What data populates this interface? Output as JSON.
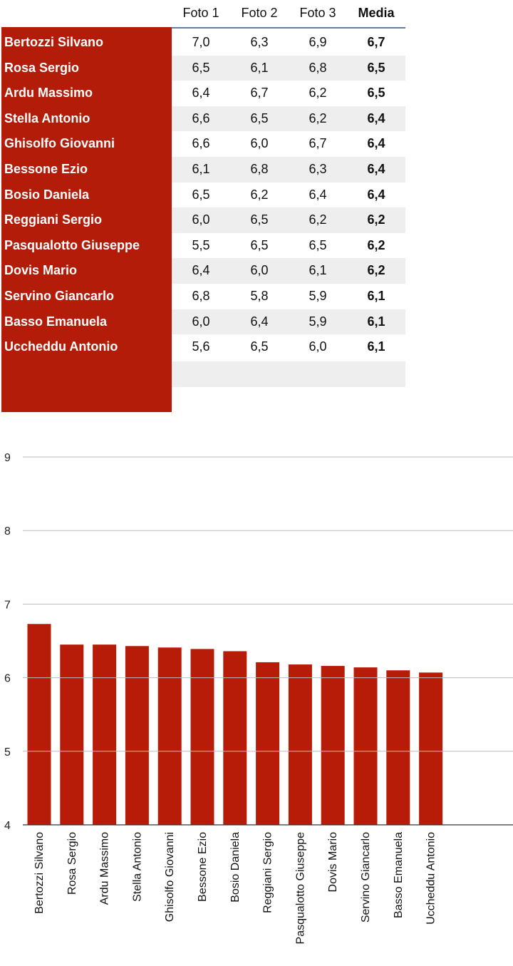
{
  "table": {
    "headers": [
      "Foto 1",
      "Foto 2",
      "Foto 3",
      "Media"
    ],
    "rows": [
      {
        "name": "Bertozzi Silvano",
        "f1": "7,0",
        "f2": "6,3",
        "f3": "6,9",
        "media": "6,7"
      },
      {
        "name": "Rosa Sergio",
        "f1": "6,5",
        "f2": "6,1",
        "f3": "6,8",
        "media": "6,5"
      },
      {
        "name": "Ardu Massimo",
        "f1": "6,4",
        "f2": "6,7",
        "f3": "6,2",
        "media": "6,5"
      },
      {
        "name": "Stella Antonio",
        "f1": "6,6",
        "f2": "6,5",
        "f3": "6,2",
        "media": "6,4"
      },
      {
        "name": "Ghisolfo Giovanni",
        "f1": "6,6",
        "f2": "6,0",
        "f3": "6,7",
        "media": "6,4"
      },
      {
        "name": "Bessone Ezio",
        "f1": "6,1",
        "f2": "6,8",
        "f3": "6,3",
        "media": "6,4"
      },
      {
        "name": "Bosio Daniela",
        "f1": "6,5",
        "f2": "6,2",
        "f3": "6,4",
        "media": "6,4"
      },
      {
        "name": "Reggiani Sergio",
        "f1": "6,0",
        "f2": "6,5",
        "f3": "6,2",
        "media": "6,2"
      },
      {
        "name": "Pasqualotto Giuseppe",
        "f1": "5,5",
        "f2": "6,5",
        "f3": "6,5",
        "media": "6,2"
      },
      {
        "name": "Dovis Mario",
        "f1": "6,4",
        "f2": "6,0",
        "f3": "6,1",
        "media": "6,2"
      },
      {
        "name": "Servino Giancarlo",
        "f1": "6,8",
        "f2": "5,8",
        "f3": "5,9",
        "media": "6,1"
      },
      {
        "name": "Basso Emanuela",
        "f1": "6,0",
        "f2": "6,4",
        "f3": "5,9",
        "media": "6,1"
      },
      {
        "name": "Uccheddu Antonio",
        "f1": "5,6",
        "f2": "6,5",
        "f3": "6,0",
        "media": "6,1"
      }
    ]
  },
  "chart_data": {
    "type": "bar",
    "categories": [
      "Bertozzi Silvano",
      "Rosa Sergio",
      "Ardu Massimo",
      "Stella Antonio",
      "Ghisolfo Giovanni",
      "Bessone Ezio",
      "Bosio Daniela",
      "Reggiani Sergio",
      "Pasqualotto Giuseppe",
      "Dovis Mario",
      "Servino Giancarlo",
      "Basso Emanuela",
      "Uccheddu Antonio"
    ],
    "values": [
      6.73,
      6.45,
      6.45,
      6.43,
      6.41,
      6.39,
      6.36,
      6.21,
      6.18,
      6.16,
      6.14,
      6.1,
      6.07
    ],
    "yticks": [
      "4",
      "5",
      "6",
      "7",
      "8",
      "9"
    ],
    "ylim": [
      4,
      9
    ],
    "grid": true,
    "bar_color": "#b71c08",
    "grid_color": "#bbbbbb"
  },
  "colors": {
    "name_column": "#b31c08",
    "alt_row": "#efeeef",
    "header_rule": "#5c7fa8"
  }
}
